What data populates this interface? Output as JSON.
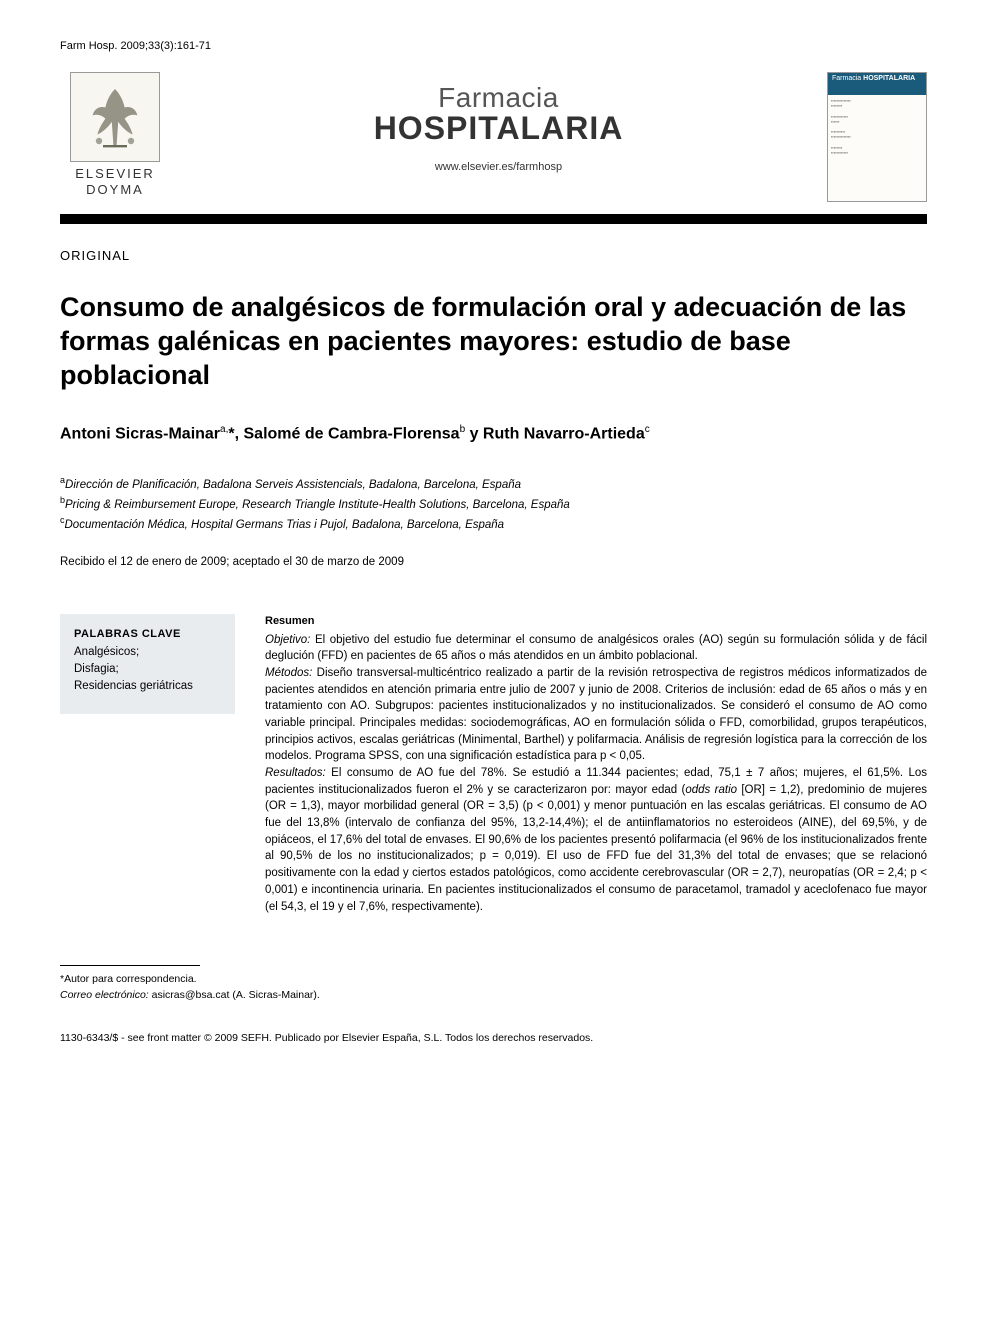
{
  "citation": "Farm Hosp. 2009;33(3):161-71",
  "publisher": {
    "name_line1": "ELSEVIER",
    "name_line2": "DOYMA"
  },
  "journal": {
    "name_light": "Farmacia",
    "name_bold": "HOSPITALARIA",
    "url": "www.elsevier.es/farmhosp",
    "cover_light": "Farmacia",
    "cover_bold": "HOSPITALARIA"
  },
  "article_type": "ORIGINAL",
  "title": "Consumo de analgésicos de formulación oral y adecuación de las formas galénicas en pacientes mayores: estudio de base poblacional",
  "authors_html": "Antoni Sicras-Mainar<sup>a,</sup>*, Salomé de Cambra-Florensa<sup>b</sup> y Ruth Navarro-Artieda<sup>c</sup>",
  "affiliations": [
    {
      "sup": "a",
      "text": "Dirección de Planificación, Badalona Serveis Assistencials, Badalona, Barcelona, España"
    },
    {
      "sup": "b",
      "text": "Pricing & Reimbursement Europe, Research Triangle Institute-Health Solutions, Barcelona, España"
    },
    {
      "sup": "c",
      "text": "Documentación Médica, Hospital Germans Trias i Pujol, Badalona, Barcelona, España"
    }
  ],
  "dates": "Recibido el 12 de enero de 2009; aceptado el 30 de marzo de 2009",
  "keywords": {
    "title": "PALABRAS CLAVE",
    "items": "Analgésicos;\nDisfagia;\nResidencias geriátricas"
  },
  "abstract": {
    "title": "Resumen",
    "objective_label": "Objetivo:",
    "objective": " El objetivo del estudio fue determinar el consumo de analgésicos orales (AO) según su formulación sólida y de fácil deglución (FFD) en pacientes de 65 años o más atendidos en un ámbito poblacional.",
    "methods_label": "Métodos:",
    "methods": " Diseño transversal-multicéntrico realizado a partir de la revisión retrospectiva de registros médicos informatizados de pacientes atendidos en atención primaria entre julio de 2007 y junio de 2008. Criterios de inclusión: edad de 65 años o más y en tratamiento con AO. Subgrupos: pacientes institucionalizados y no institucionalizados. Se consideró el consumo de AO como variable principal. Principales medidas: sociodemográficas, AO en formulación sólida o FFD, comorbilidad, grupos terapéuticos, principios activos, escalas geriátricas (Minimental, Barthel) y polifarmacia. Análisis de regresión logística para la corrección de los modelos. Programa SPSS, con una significación estadística para p < 0,05.",
    "results_label": "Resultados:",
    "results": " El consumo de AO fue del 78%. Se estudió a 11.344 pacientes; edad, 75,1 ± 7 años; mujeres, el 61,5%. Los pacientes institucionalizados fueron el 2% y se caracterizaron por: mayor edad (odds ratio [OR] = 1,2), predominio de mujeres (OR = 1,3), mayor morbilidad general (OR = 3,5) (p < 0,001) y menor puntuación en las escalas geriátricas. El consumo de AO fue del 13,8% (intervalo de confianza del 95%, 13,2-14,4%); el de antiinflamatorios no esteroideos (AINE), del 69,5%, y de opiáceos, el 17,6% del total de envases. El 90,6% de los pacientes presentó polifarmacia (el 96% de los institucionalizados frente al 90,5% de los no institucionalizados; p = 0,019). El uso de FFD fue del 31,3% del total de envases; que se relacionó positivamente con la edad y ciertos estados patológicos, como accidente cerebrovascular (OR = 2,7), neuropatías (OR = 2,4; p < 0,001) e incontinencia urinaria. En pacientes institucionalizados el consumo de paracetamol, tramadol y aceclofenaco fue mayor (el 54,3, el 19 y el 7,6%, respectivamente)."
  },
  "footnote": {
    "corresp": "*Autor para correspondencia.",
    "email_label": "Correo electrónico:",
    "email": " asicras@bsa.cat (A. Sicras-Mainar)."
  },
  "copyright": "1130-6343/$ - see front matter © 2009 SEFH. Publicado por Elsevier España, S.L. Todos los derechos reservados.",
  "colors": {
    "divider": "#000000",
    "keywords_bg": "#e8ecef",
    "cover_header": "#1a5a7a"
  }
}
